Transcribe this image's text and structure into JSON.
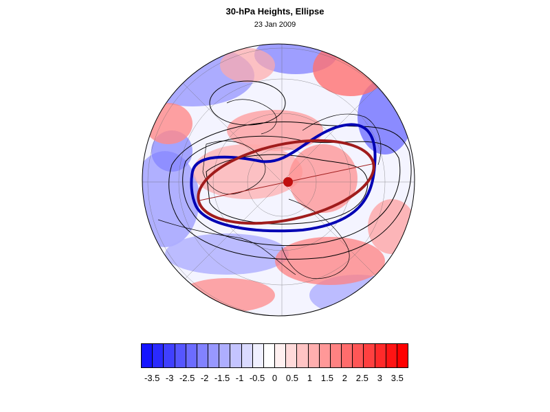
{
  "title": "30-hPa Heights, Ellipse",
  "subtitle": "23 Jan 2009",
  "colors": {
    "ellipse": "#a01c1c",
    "contour_highlight": "#0000b4",
    "contour": "#000000",
    "center_marker": "#c01010"
  },
  "colorbar": {
    "colors": [
      "#1414ff",
      "#2a2aff",
      "#4040ff",
      "#5656ff",
      "#6c6cff",
      "#8282ff",
      "#9898ff",
      "#aeaeff",
      "#c4c4ff",
      "#dadaff",
      "#f0f0ff",
      "#ffffff",
      "#fff0f0",
      "#ffdada",
      "#ffc4c4",
      "#ffaeae",
      "#ff9898",
      "#ff8282",
      "#ff6c6c",
      "#ff5656",
      "#ff4040",
      "#ff2a2a",
      "#ff1414",
      "#ff0000"
    ],
    "labels": [
      "-3.5",
      "-3",
      "-2.5",
      "-2",
      "-1.5",
      "-1",
      "-0.5",
      "0",
      "0.5",
      "1",
      "1.5",
      "2",
      "2.5",
      "3",
      "3.5"
    ]
  }
}
